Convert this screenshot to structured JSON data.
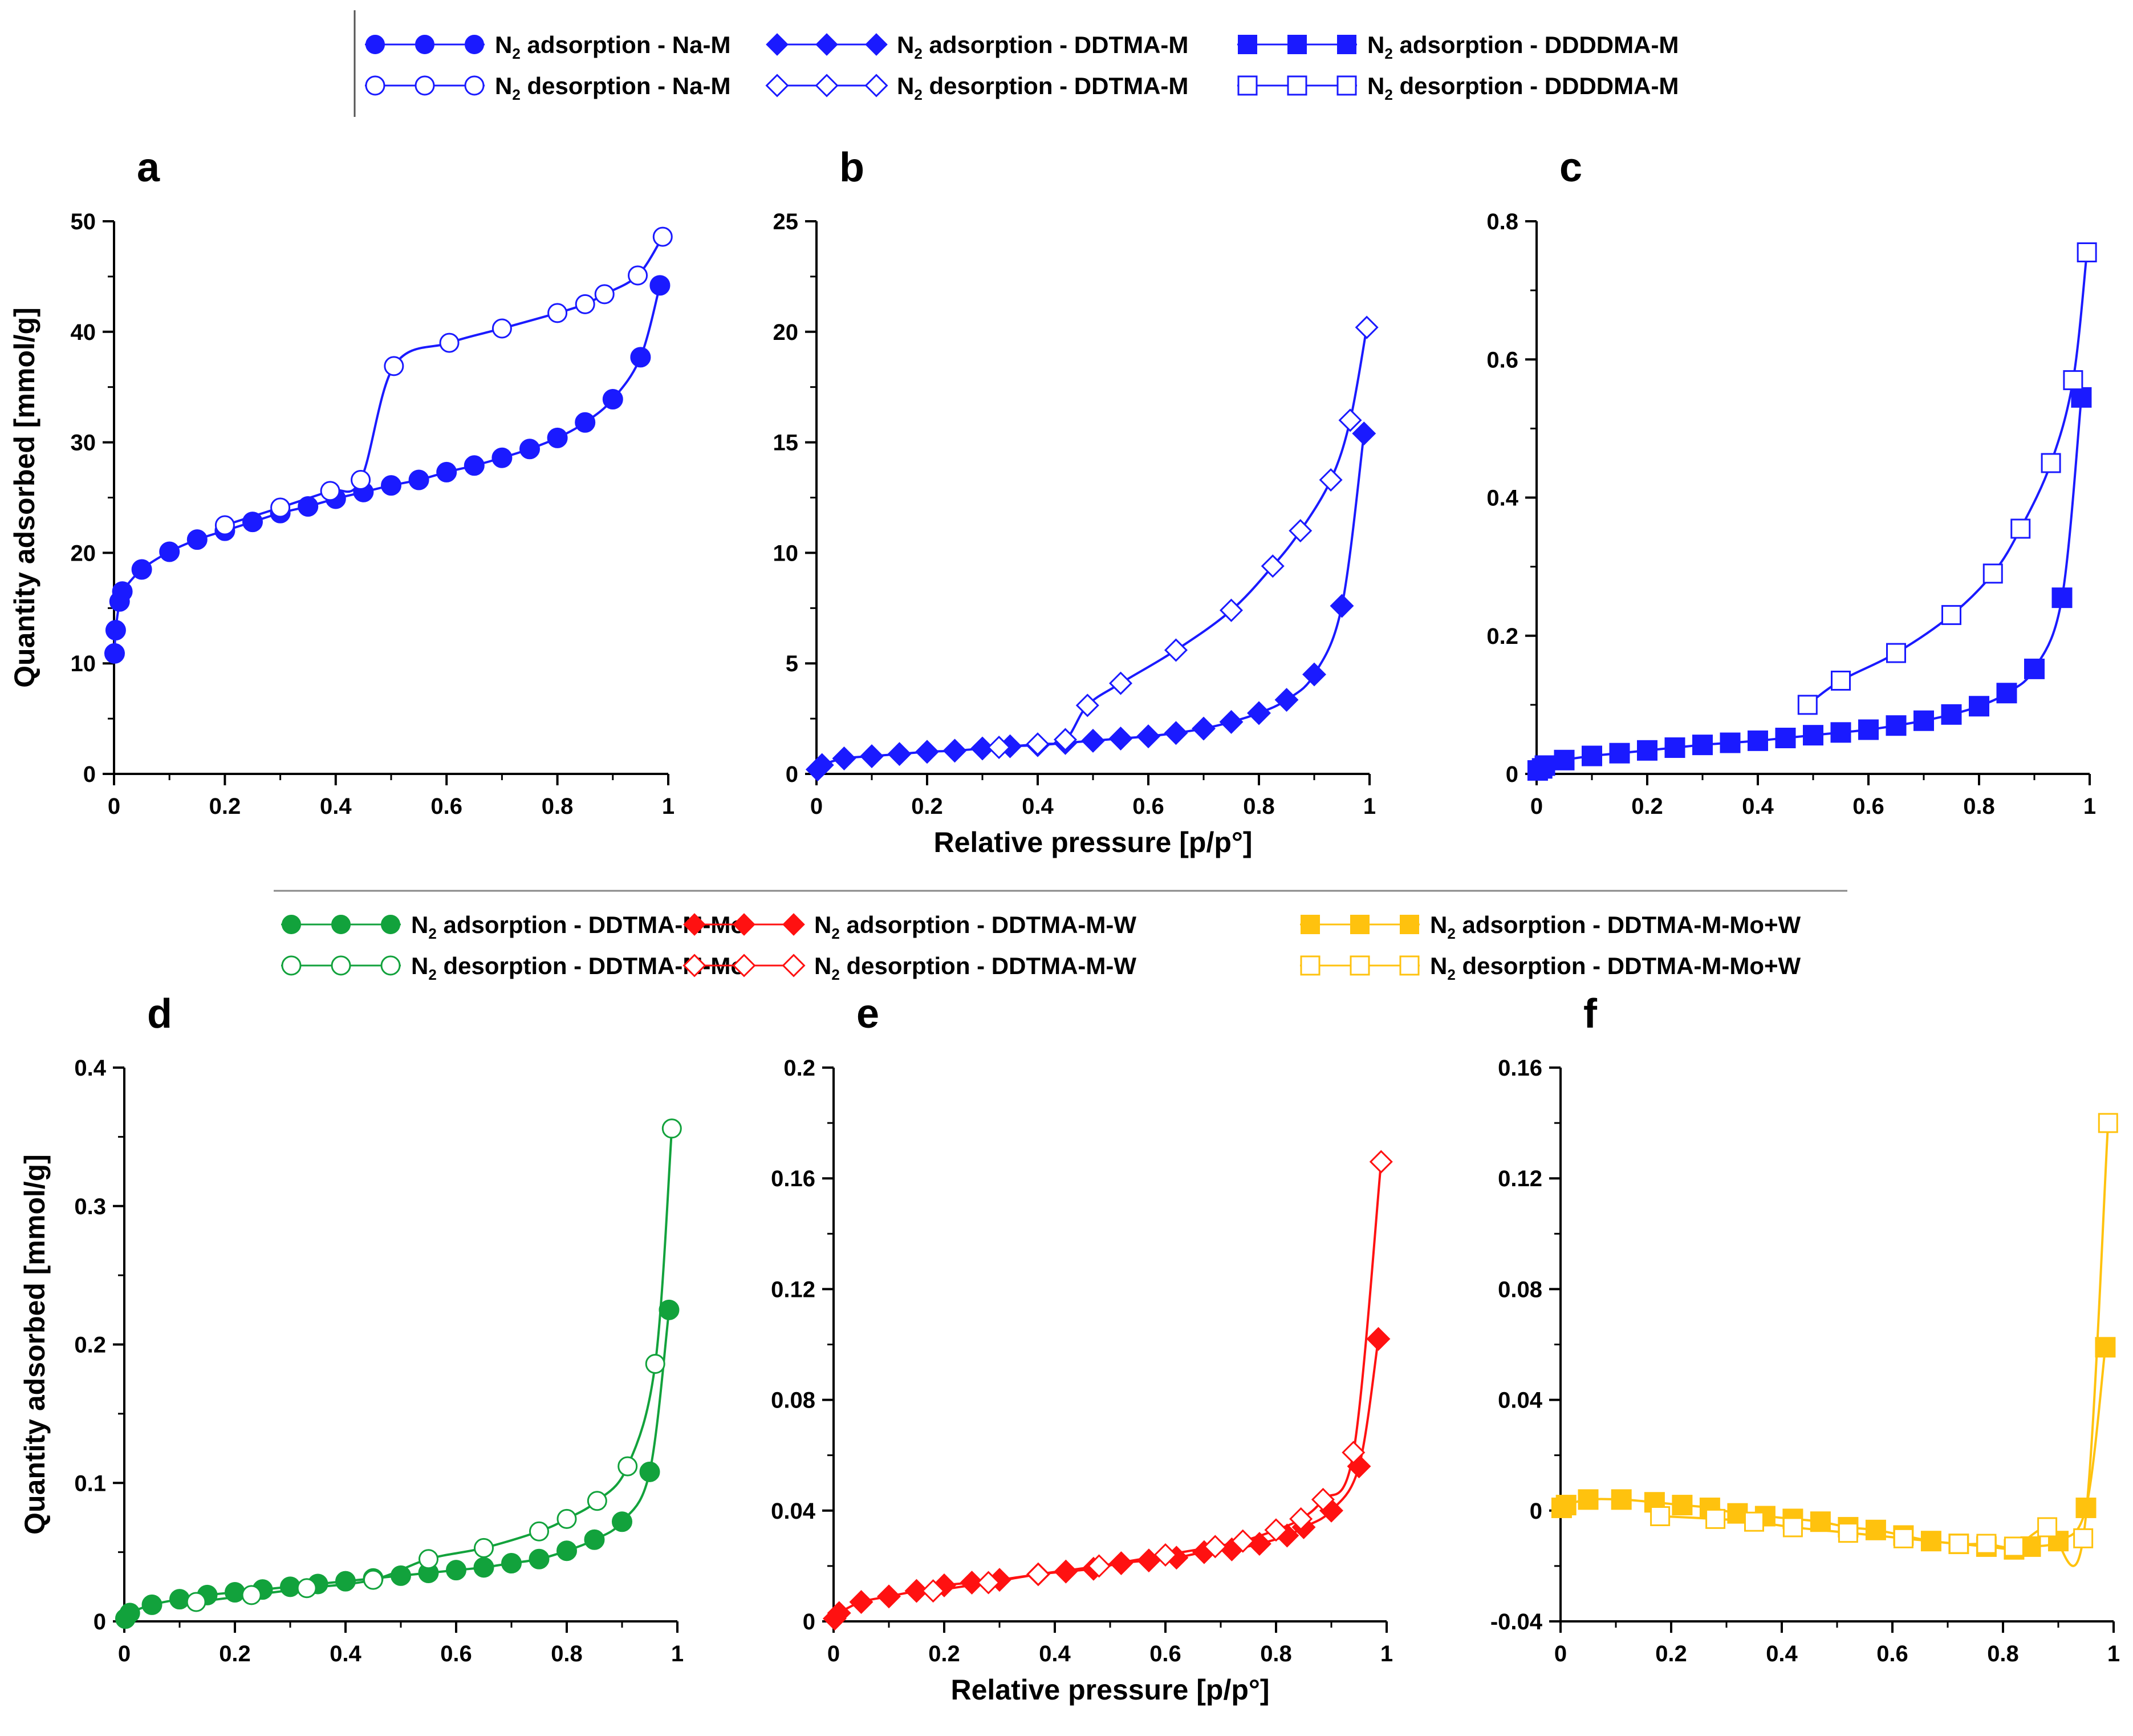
{
  "figure": {
    "legend_top": [
      {
        "key": "na_ads",
        "prefix": "N",
        "sub": "2",
        "text": " adsorption - Na-M",
        "marker": "circle",
        "filled": true,
        "color": "#1a1aff"
      },
      {
        "key": "ddtma_ads",
        "prefix": "N",
        "sub": "2",
        "text": " adsorption - DDTMA-M",
        "marker": "diamond",
        "filled": true,
        "color": "#1a1aff"
      },
      {
        "key": "ddddma_ads",
        "prefix": "N",
        "sub": "2",
        "text": " adsorption - DDDDMA-M",
        "marker": "square",
        "filled": true,
        "color": "#1a1aff"
      },
      {
        "key": "na_des",
        "prefix": "N",
        "sub": "2",
        "text": " desorption - Na-M",
        "marker": "circle",
        "filled": false,
        "color": "#1a1aff"
      },
      {
        "key": "ddtma_des",
        "prefix": "N",
        "sub": "2",
        "text": " desorption - DDTMA-M",
        "marker": "diamond",
        "filled": false,
        "color": "#1a1aff"
      },
      {
        "key": "ddddma_des",
        "prefix": "N",
        "sub": "2",
        "text": " desorption - DDDDMA-M",
        "marker": "square",
        "filled": false,
        "color": "#1a1aff"
      }
    ],
    "legend_bottom": [
      {
        "key": "mo_ads",
        "prefix": "N",
        "sub": "2",
        "text": " adsorption - DDTMA-M-Mo",
        "marker": "circle",
        "filled": true,
        "color": "#12a23c"
      },
      {
        "key": "w_ads",
        "prefix": "N",
        "sub": "2",
        "text": " adsorption - DDTMA-M-W",
        "marker": "diamond",
        "filled": true,
        "color": "#ff1111"
      },
      {
        "key": "mow_ads",
        "prefix": "N",
        "sub": "2",
        "text": " adsorption - DDTMA-M-Mo+W",
        "marker": "square",
        "filled": true,
        "color": "#ffc20e"
      },
      {
        "key": "mo_des",
        "prefix": "N",
        "sub": "2",
        "text": " desorption - DDTMA-M-Mo",
        "marker": "circle",
        "filled": false,
        "color": "#12a23c"
      },
      {
        "key": "w_des",
        "prefix": "N",
        "sub": "2",
        "text": " desorption - DDTMA-M-W",
        "marker": "diamond",
        "filled": false,
        "color": "#ff1111"
      },
      {
        "key": "mow_des",
        "prefix": "N",
        "sub": "2",
        "text": " desorption - DDTMA-M-Mo+W",
        "marker": "square",
        "filled": false,
        "color": "#ffc20e"
      }
    ],
    "ylabel": "Quantity adsorbed [mmol/g]",
    "xlabel": "Relative pressure [p/p°]"
  },
  "chart_data": [
    {
      "panel": "a",
      "type": "scatter",
      "marker": "circle",
      "color": "#1a1aff",
      "xlim": [
        0,
        1
      ],
      "ylim": [
        0,
        50
      ],
      "xticks": [
        "0",
        "0.2",
        "0.4",
        "0.6",
        "0.8",
        "1"
      ],
      "xtick_values": [
        0,
        0.2,
        0.4,
        0.6,
        0.8,
        1
      ],
      "yticks": [
        "0",
        "10",
        "20",
        "30",
        "40",
        "50"
      ],
      "ytick_values": [
        0,
        10,
        20,
        30,
        40,
        50
      ],
      "show_ylabel": true,
      "show_xlabel": false,
      "series": [
        {
          "name": "N2 adsorption - Na-M",
          "filled": true,
          "x": [
            0.001,
            0.003,
            0.01,
            0.015,
            0.05,
            0.1,
            0.15,
            0.2,
            0.25,
            0.3,
            0.35,
            0.4,
            0.45,
            0.5,
            0.55,
            0.6,
            0.65,
            0.7,
            0.75,
            0.8,
            0.85,
            0.9,
            0.95,
            0.985
          ],
          "y": [
            10.9,
            13.0,
            15.6,
            16.5,
            18.5,
            20.1,
            21.2,
            22.0,
            22.8,
            23.6,
            24.2,
            24.9,
            25.5,
            26.1,
            26.6,
            27.3,
            27.9,
            28.6,
            29.4,
            30.4,
            31.8,
            33.9,
            37.7,
            44.2
          ]
        },
        {
          "name": "N2 desorption - Na-M",
          "filled": false,
          "smooth": false,
          "x": [
            0.99,
            0.945,
            0.885,
            0.85,
            0.8,
            0.7,
            0.605,
            0.505,
            0.445,
            0.39,
            0.3,
            0.2
          ],
          "y": [
            48.6,
            45.1,
            43.4,
            42.5,
            41.7,
            40.3,
            39.0,
            36.9,
            26.6,
            25.6,
            24.1,
            22.5
          ]
        }
      ]
    },
    {
      "panel": "b",
      "type": "scatter",
      "marker": "diamond",
      "color": "#1a1aff",
      "xlim": [
        0,
        1
      ],
      "ylim": [
        0,
        25
      ],
      "xticks": [
        "0",
        "0.2",
        "0.4",
        "0.6",
        "0.8",
        "1"
      ],
      "xtick_values": [
        0,
        0.2,
        0.4,
        0.6,
        0.8,
        1
      ],
      "yticks": [
        "0",
        "5",
        "10",
        "15",
        "20",
        "25"
      ],
      "ytick_values": [
        0,
        5,
        10,
        15,
        20,
        25
      ],
      "show_ylabel": false,
      "show_xlabel": true,
      "series": [
        {
          "name": "N2 adsorption - DDTMA-M",
          "filled": true,
          "x": [
            0.002,
            0.01,
            0.05,
            0.1,
            0.15,
            0.2,
            0.25,
            0.3,
            0.35,
            0.4,
            0.45,
            0.5,
            0.55,
            0.6,
            0.65,
            0.7,
            0.75,
            0.8,
            0.85,
            0.9,
            0.95,
            0.99
          ],
          "y": [
            0.2,
            0.4,
            0.7,
            0.8,
            0.9,
            1.0,
            1.05,
            1.15,
            1.25,
            1.3,
            1.4,
            1.5,
            1.6,
            1.7,
            1.85,
            2.05,
            2.35,
            2.75,
            3.35,
            4.5,
            7.6,
            15.4
          ]
        },
        {
          "name": "N2 desorption - DDTMA-M",
          "filled": false,
          "x": [
            0.995,
            0.965,
            0.93,
            0.875,
            0.825,
            0.75,
            0.65,
            0.55,
            0.49,
            0.45,
            0.4,
            0.33
          ],
          "y": [
            20.2,
            16.0,
            13.3,
            11.0,
            9.4,
            7.4,
            5.6,
            4.1,
            3.1,
            1.55,
            1.35,
            1.2
          ]
        }
      ]
    },
    {
      "panel": "c",
      "type": "scatter",
      "marker": "square",
      "color": "#1a1aff",
      "xlim": [
        0,
        1
      ],
      "ylim": [
        0,
        0.8
      ],
      "xticks": [
        "0",
        "0.2",
        "0.4",
        "0.6",
        "0.8",
        "1"
      ],
      "xtick_values": [
        0,
        0.2,
        0.4,
        0.6,
        0.8,
        1
      ],
      "yticks": [
        "0",
        "0.2",
        "0.4",
        "0.6",
        "0.8"
      ],
      "ytick_values": [
        0,
        0.2,
        0.4,
        0.6,
        0.8
      ],
      "show_ylabel": false,
      "show_xlabel": false,
      "series": [
        {
          "name": "N2 adsorption - DDDDMA-M",
          "filled": true,
          "x": [
            0.002,
            0.01,
            0.015,
            0.05,
            0.1,
            0.15,
            0.2,
            0.25,
            0.3,
            0.35,
            0.4,
            0.45,
            0.5,
            0.55,
            0.6,
            0.65,
            0.7,
            0.75,
            0.8,
            0.85,
            0.9,
            0.95,
            0.985
          ],
          "y": [
            0.005,
            0.008,
            0.012,
            0.02,
            0.026,
            0.03,
            0.034,
            0.038,
            0.042,
            0.045,
            0.048,
            0.052,
            0.056,
            0.06,
            0.064,
            0.07,
            0.077,
            0.086,
            0.098,
            0.117,
            0.152,
            0.255,
            0.545
          ]
        },
        {
          "name": "N2 desorption - DDDDMA-M",
          "filled": false,
          "x": [
            0.995,
            0.97,
            0.93,
            0.875,
            0.825,
            0.75,
            0.65,
            0.55,
            0.49
          ],
          "y": [
            0.755,
            0.57,
            0.45,
            0.355,
            0.29,
            0.23,
            0.175,
            0.135,
            0.1
          ]
        }
      ]
    },
    {
      "panel": "d",
      "type": "scatter",
      "marker": "circle",
      "color": "#12a23c",
      "xlim": [
        0,
        1
      ],
      "ylim": [
        0,
        0.4
      ],
      "xticks": [
        "0",
        "0.2",
        "0.4",
        "0.6",
        "0.8",
        "1"
      ],
      "xtick_values": [
        0,
        0.2,
        0.4,
        0.6,
        0.8,
        1
      ],
      "yticks": [
        "0",
        "0.1",
        "0.2",
        "0.3",
        "0.4"
      ],
      "ytick_values": [
        0,
        0.1,
        0.2,
        0.3,
        0.4
      ],
      "show_ylabel": true,
      "show_xlabel": false,
      "series": [
        {
          "name": "N2 adsorption - DDTMA-M-Mo",
          "filled": true,
          "x": [
            0.002,
            0.01,
            0.05,
            0.1,
            0.15,
            0.2,
            0.25,
            0.3,
            0.35,
            0.4,
            0.45,
            0.5,
            0.55,
            0.6,
            0.65,
            0.7,
            0.75,
            0.8,
            0.85,
            0.9,
            0.95,
            0.985
          ],
          "y": [
            0.002,
            0.006,
            0.012,
            0.016,
            0.019,
            0.021,
            0.023,
            0.025,
            0.027,
            0.029,
            0.031,
            0.033,
            0.035,
            0.037,
            0.039,
            0.042,
            0.045,
            0.051,
            0.059,
            0.072,
            0.108,
            0.225
          ]
        },
        {
          "name": "N2 desorption - DDTMA-M-Mo",
          "filled": false,
          "x": [
            0.99,
            0.96,
            0.91,
            0.855,
            0.8,
            0.75,
            0.65,
            0.55,
            0.45,
            0.33,
            0.23,
            0.13
          ],
          "y": [
            0.356,
            0.186,
            0.112,
            0.087,
            0.074,
            0.065,
            0.053,
            0.045,
            0.03,
            0.024,
            0.019,
            0.014
          ]
        }
      ]
    },
    {
      "panel": "e",
      "type": "scatter",
      "marker": "diamond",
      "color": "#ff1111",
      "xlim": [
        0,
        1
      ],
      "ylim": [
        0,
        0.2
      ],
      "xticks": [
        "0",
        "0.2",
        "0.4",
        "0.6",
        "0.8",
        "1"
      ],
      "xtick_values": [
        0,
        0.2,
        0.4,
        0.6,
        0.8,
        1
      ],
      "yticks": [
        "0",
        "0.04",
        "0.08",
        "0.12",
        "0.16",
        "0.2"
      ],
      "ytick_values": [
        0,
        0.04,
        0.08,
        0.12,
        0.16,
        0.2
      ],
      "show_ylabel": false,
      "show_xlabel": true,
      "series": [
        {
          "name": "N2 adsorption - DDTMA-M-W",
          "filled": true,
          "x": [
            0.002,
            0.01,
            0.05,
            0.1,
            0.15,
            0.2,
            0.25,
            0.3,
            0.37,
            0.42,
            0.47,
            0.52,
            0.57,
            0.62,
            0.67,
            0.72,
            0.77,
            0.82,
            0.85,
            0.9,
            0.95,
            0.985
          ],
          "y": [
            0.001,
            0.003,
            0.007,
            0.009,
            0.011,
            0.013,
            0.014,
            0.015,
            0.017,
            0.018,
            0.019,
            0.021,
            0.022,
            0.023,
            0.025,
            0.026,
            0.028,
            0.031,
            0.034,
            0.04,
            0.056,
            0.102
          ]
        },
        {
          "name": "N2 desorption - DDTMA-M-W",
          "filled": false,
          "x": [
            0.99,
            0.94,
            0.885,
            0.845,
            0.8,
            0.74,
            0.69,
            0.6,
            0.48,
            0.37,
            0.28,
            0.18
          ],
          "y": [
            0.166,
            0.061,
            0.044,
            0.037,
            0.033,
            0.029,
            0.027,
            0.024,
            0.02,
            0.017,
            0.014,
            0.011
          ]
        }
      ]
    },
    {
      "panel": "f",
      "type": "scatter",
      "marker": "square",
      "color": "#ffc20e",
      "xlim": [
        0,
        1
      ],
      "ylim": [
        -0.04,
        0.16
      ],
      "xticks": [
        "0",
        "0.2",
        "0.4",
        "0.6",
        "0.8",
        "1"
      ],
      "xtick_values": [
        0,
        0.2,
        0.4,
        0.6,
        0.8,
        1
      ],
      "yticks": [
        "-0.04",
        "0",
        "0.04",
        "0.08",
        "0.12",
        "0.16"
      ],
      "ytick_values": [
        -0.04,
        0,
        0.04,
        0.08,
        0.12,
        0.16
      ],
      "show_ylabel": false,
      "show_xlabel": false,
      "series": [
        {
          "name": "N2 adsorption - DDTMA-M-Mo+W",
          "filled": true,
          "x": [
            0.002,
            0.01,
            0.05,
            0.11,
            0.17,
            0.22,
            0.27,
            0.32,
            0.37,
            0.42,
            0.47,
            0.52,
            0.57,
            0.62,
            0.67,
            0.72,
            0.77,
            0.82,
            0.85,
            0.9,
            0.95,
            0.985
          ],
          "y": [
            0.001,
            0.002,
            0.004,
            0.004,
            0.003,
            0.002,
            0.001,
            -0.001,
            -0.002,
            -0.003,
            -0.004,
            -0.006,
            -0.007,
            -0.009,
            -0.011,
            -0.012,
            -0.013,
            -0.014,
            -0.013,
            -0.011,
            0.001,
            0.059
          ]
        },
        {
          "name": "N2 desorption - DDTMA-M-Mo+W",
          "filled": false,
          "x": [
            0.99,
            0.945,
            0.88,
            0.82,
            0.77,
            0.72,
            0.62,
            0.52,
            0.42,
            0.35,
            0.28,
            0.18
          ],
          "y": [
            0.14,
            -0.01,
            -0.006,
            -0.013,
            -0.012,
            -0.012,
            -0.01,
            -0.008,
            -0.006,
            -0.004,
            -0.003,
            -0.002
          ]
        }
      ]
    }
  ]
}
